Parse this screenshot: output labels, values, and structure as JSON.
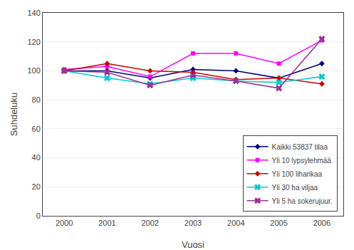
{
  "chart_data": {
    "type": "line",
    "x": [
      2000,
      2001,
      2002,
      2003,
      2004,
      2005,
      2006
    ],
    "series": [
      {
        "name": "Kaikki 53837 tilaa",
        "color": "#000080",
        "marker": "diamond",
        "values": [
          100,
          100,
          95,
          101,
          100,
          95,
          105
        ]
      },
      {
        "name": "Yli 10 lypsylehmää",
        "color": "#ff00ff",
        "marker": "square",
        "values": [
          101,
          103,
          96,
          112,
          112,
          105,
          121
        ]
      },
      {
        "name": "Yli 100 liharikaa",
        "color": "#cc0000",
        "marker": "diamond",
        "values": [
          100,
          105,
          100,
          99,
          94,
          95,
          91
        ]
      },
      {
        "name": "Yli 30 ha viljaa",
        "color": "#00cccc",
        "marker": "x",
        "values": [
          100,
          95,
          91,
          95,
          93,
          92,
          96
        ]
      },
      {
        "name": "Yli 5 ha sokerujuur.",
        "color": "#993399",
        "marker": "x",
        "values": [
          100,
          99,
          90,
          97,
          93,
          88,
          122
        ]
      }
    ],
    "xlabel": "Vuosi",
    "ylabel": "Suhdeluku",
    "xlim": [
      1999.5,
      2006.5
    ],
    "xticks": [
      2000,
      2001,
      2002,
      2003,
      2004,
      2005,
      2006
    ],
    "ylim": [
      0,
      140
    ],
    "yticks": [
      0,
      20,
      40,
      60,
      80,
      100,
      120,
      140
    ],
    "grid": "y",
    "legend": "lower right"
  }
}
